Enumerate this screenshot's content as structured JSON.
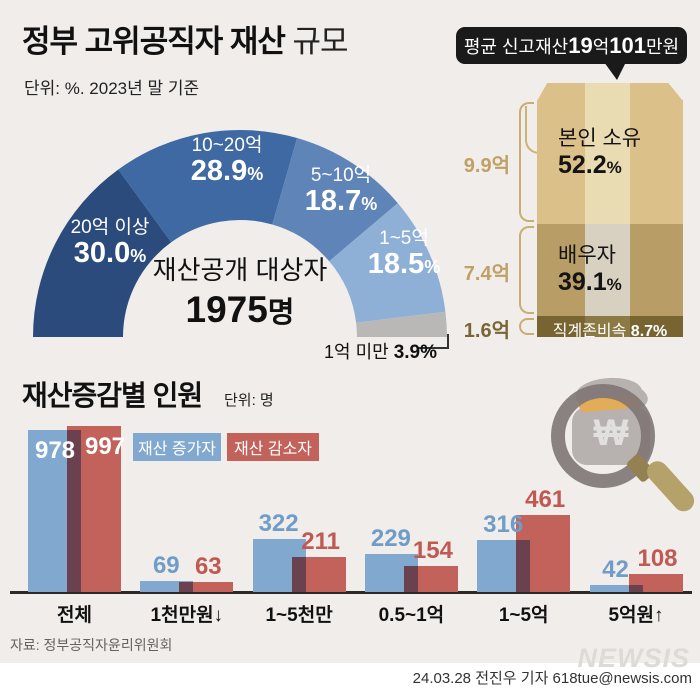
{
  "header": {
    "title_bold": "정부 고위공직자 재산",
    "title_light": "규모",
    "subtitle": "단위: %. 2023년 말 기준"
  },
  "average_callout": {
    "prefix": "평균 신고재산 ",
    "big1": "19",
    "unit1": "억",
    "big2": "101",
    "unit2": "만원"
  },
  "chart_data": [
    {
      "type": "pie",
      "subtype": "semicircle-donut",
      "center_label": "재산공개 대상자",
      "center_value": "1975",
      "center_unit": "명",
      "segments": [
        {
          "label": "20억 이상",
          "value": 30.0,
          "display": "30.0"
        },
        {
          "label": "10~20억",
          "value": 28.9,
          "display": "28.9"
        },
        {
          "label": "5~10억",
          "value": 18.7,
          "display": "18.7"
        },
        {
          "label": "1~5억",
          "value": 18.5,
          "display": "18.5"
        },
        {
          "label": "1억 미만",
          "value": 3.9,
          "display": "3.9"
        }
      ]
    },
    {
      "type": "bar",
      "subtype": "stacked-moneybag",
      "segments": [
        {
          "label": "본인 소유",
          "value": 52.2,
          "display": "52.2",
          "amount": "9.9억"
        },
        {
          "label": "배우자",
          "value": 39.1,
          "display": "39.1",
          "amount": "7.4억"
        },
        {
          "label": "직계존비속",
          "value": 8.7,
          "display": "8.7",
          "amount": "1.6억"
        }
      ]
    },
    {
      "type": "bar",
      "title": "재산증감별 인원",
      "unit": "단위: 명",
      "categories": [
        "전체",
        "1천만원↓",
        "1~5천만",
        "0.5~1억",
        "1~5억",
        "5억원↑"
      ],
      "series": [
        {
          "name": "재산 증가자",
          "values": [
            978,
            69,
            322,
            229,
            316,
            42
          ]
        },
        {
          "name": "재산 감소자",
          "values": [
            997,
            63,
            211,
            154,
            461,
            108
          ]
        }
      ],
      "legend_position": "top-left",
      "grid": false
    }
  ],
  "illustration": {
    "won_symbol": "₩"
  },
  "colors": {
    "background": "#f0edeb",
    "donut": [
      "#2b4b7c",
      "#3e69a2",
      "#5e84b8",
      "#8fb0d6",
      "#b9b8b6"
    ],
    "bag": [
      "#dcc089",
      "#b89e66",
      "#776430"
    ],
    "bag_stripe": [
      "#eadcb2",
      "#d8d1c1",
      "#8c7a45"
    ],
    "bag_bracket": "#c9ad74",
    "bag_amount_label": "#bfa065",
    "bag_amount_label_dark": "#7a6535",
    "increase": "#81a9cf",
    "decrease": "#c2625b",
    "overlap": "#6b4150",
    "num_increase": "#6f9dc8",
    "num_decrease": "#bf5952",
    "bubble": "#1a1a1a"
  },
  "footer": {
    "source": "자료: 정부공직자윤리위원회",
    "logo": "NEWSIS",
    "credit": "24.03.28 전진우 기자 618tue@newsis.com"
  }
}
